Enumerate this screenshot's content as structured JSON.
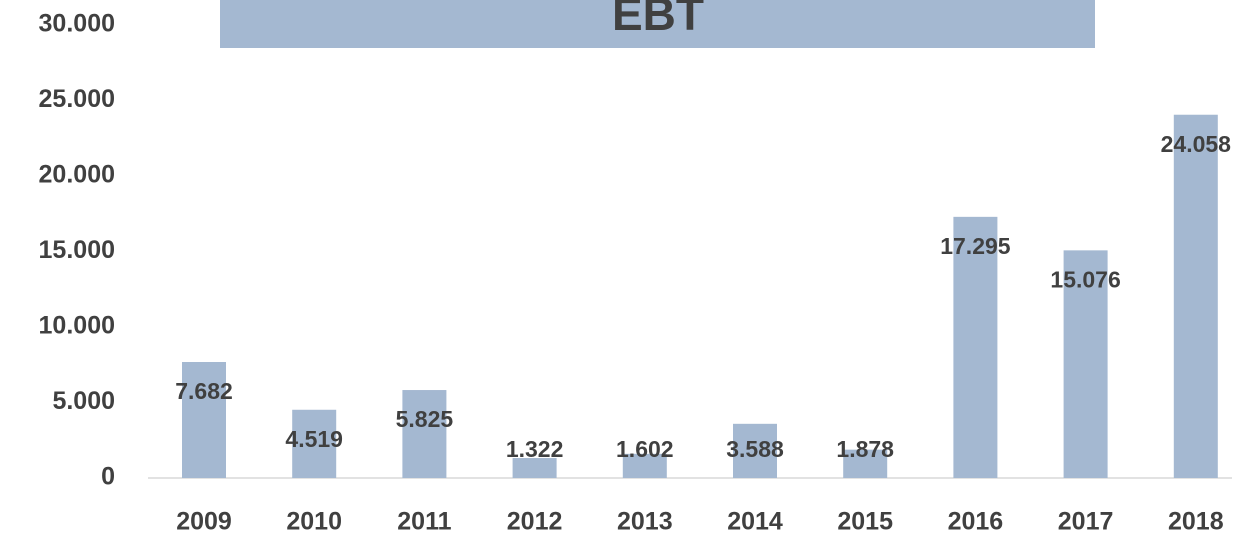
{
  "chart_data": {
    "type": "bar",
    "title": "EBT",
    "categories": [
      "2009",
      "2010",
      "2011",
      "2012",
      "2013",
      "2014",
      "2015",
      "2016",
      "2017",
      "2018"
    ],
    "values": [
      7682,
      4519,
      5825,
      1322,
      1602,
      3588,
      1878,
      17295,
      15076,
      24058
    ],
    "value_labels": [
      "7.682",
      "4.519",
      "5.825",
      "1.322",
      "1.602",
      "3.588",
      "1.878",
      "17.295",
      "15.076",
      "24.058"
    ],
    "color": "#a4b8d1",
    "ylim": [
      0,
      30000
    ],
    "yticks": [
      0,
      {
        "value": 5000,
        "label": "5.000"
      },
      {
        "value": 10000,
        "label": "10.000"
      },
      {
        "value": 15000,
        "label": "15.000"
      },
      {
        "value": 20000,
        "label": "20.000"
      },
      {
        "value": 25000,
        "label": "25.000"
      },
      {
        "value": 30000,
        "label": "30.000"
      }
    ],
    "grid": false
  }
}
